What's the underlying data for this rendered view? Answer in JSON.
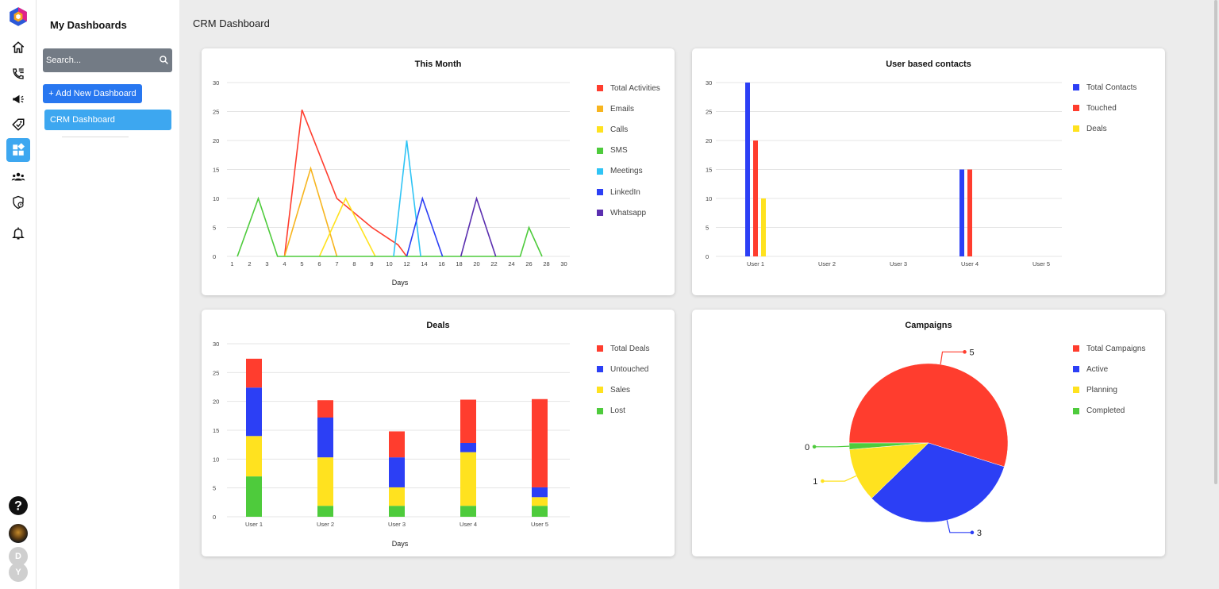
{
  "sidebar": {
    "title": "My Dashboards",
    "search_placeholder": "Search...",
    "add_label": "+ Add New Dashboard",
    "items": [
      {
        "label": "CRM Dashboard"
      }
    ]
  },
  "rail": {
    "icons": [
      "logo-icon",
      "home-icon",
      "phone-list-icon",
      "megaphone-icon",
      "tag-icon",
      "dashboard-icon",
      "team-icon",
      "shield-clock-icon",
      "bell-icon"
    ],
    "bottom": {
      "help": "?",
      "user_initials": [
        "D",
        "Y"
      ]
    }
  },
  "page": {
    "title": "CRM Dashboard"
  },
  "colors": {
    "red": "#ff3d2e",
    "orange": "#f7b51f",
    "yellow": "#ffe21f",
    "green": "#4ecb3c",
    "sky": "#2fc4f5",
    "blue": "#2c3ff5",
    "purple": "#5b2fb0",
    "accent": "#3da7f0"
  },
  "charts": [
    {
      "type": "line",
      "title": "This Month",
      "xlabel": "Days",
      "yticks": [
        0,
        5,
        10,
        15,
        20,
        25,
        30
      ],
      "ylim": [
        0,
        30
      ],
      "xticks": [
        1,
        2,
        3,
        4,
        5,
        6,
        7,
        8,
        9,
        10,
        12,
        14,
        16,
        18,
        20,
        22,
        24,
        26,
        28,
        30
      ],
      "series": [
        {
          "name": "Total Activities",
          "color": "#ff3d2e",
          "points": [
            [
              4,
              0
            ],
            [
              5,
              25.3
            ],
            [
              7,
              10
            ],
            [
              9,
              5
            ],
            [
              11,
              2
            ],
            [
              12,
              0
            ]
          ]
        },
        {
          "name": "Emails",
          "color": "#f7b51f",
          "points": [
            [
              4,
              0
            ],
            [
              5.5,
              15.2
            ],
            [
              7,
              0
            ]
          ]
        },
        {
          "name": "Calls",
          "color": "#ffe21f",
          "points": [
            [
              6,
              0
            ],
            [
              7.5,
              10
            ],
            [
              9.2,
              0
            ]
          ]
        },
        {
          "name": "SMS",
          "color": "#4ecb3c",
          "points": [
            [
              1.3,
              0
            ],
            [
              2.5,
              10
            ],
            [
              3.6,
              0
            ],
            [
              25,
              0
            ],
            [
              26,
              5
            ],
            [
              27.5,
              0
            ]
          ]
        },
        {
          "name": "Meetings",
          "color": "#2fc4f5",
          "points": [
            [
              10.5,
              0
            ],
            [
              12,
              20
            ],
            [
              13.6,
              0
            ]
          ]
        },
        {
          "name": "LinkedIn",
          "color": "#2c3ff5",
          "points": [
            [
              12,
              0
            ],
            [
              13.8,
              10
            ],
            [
              16.1,
              0
            ]
          ]
        },
        {
          "name": "Whatsapp",
          "color": "#5b2fb0",
          "points": [
            [
              18.2,
              0
            ],
            [
              20,
              10
            ],
            [
              22.2,
              0
            ]
          ]
        }
      ]
    },
    {
      "type": "bar",
      "title": "User based contacts",
      "xlabel": "",
      "yticks": [
        0,
        5,
        10,
        15,
        20,
        25,
        30
      ],
      "ylim": [
        0,
        30
      ],
      "categories": [
        "User 1",
        "User 2",
        "User 3",
        "User 4",
        "User 5"
      ],
      "series": [
        {
          "name": "Total Contacts",
          "color": "#2c3ff5",
          "values": [
            30,
            0,
            0,
            15,
            0
          ]
        },
        {
          "name": "Touched",
          "color": "#ff3d2e",
          "values": [
            20,
            0,
            0,
            15,
            0
          ]
        },
        {
          "name": "Deals",
          "color": "#ffe21f",
          "values": [
            10,
            0,
            0,
            0,
            0
          ]
        }
      ]
    },
    {
      "type": "stacked-bar",
      "title": "Deals",
      "xlabel": "Days",
      "yticks": [
        0,
        5,
        10,
        15,
        20,
        25,
        30
      ],
      "ylim": [
        0,
        30
      ],
      "categories": [
        "User 1",
        "User 2",
        "User 3",
        "User 4",
        "User 5"
      ],
      "series": [
        {
          "name": "Total Deals",
          "color": "#ff3d2e",
          "values": [
            5,
            3,
            4.5,
            7.5,
            15.3
          ]
        },
        {
          "name": "Untouched",
          "color": "#2c3ff5",
          "values": [
            8.4,
            6.9,
            5.2,
            1.6,
            1.7
          ]
        },
        {
          "name": "Sales",
          "color": "#ffe21f",
          "values": [
            7,
            8.4,
            3.2,
            9.3,
            1.5
          ]
        },
        {
          "name": "Lost",
          "color": "#4ecb3c",
          "values": [
            7,
            1.9,
            1.9,
            1.9,
            1.9
          ]
        }
      ]
    },
    {
      "type": "pie",
      "title": "Campaigns",
      "series": [
        {
          "name": "Total Campaigns",
          "color": "#ff3d2e",
          "value": 5,
          "label": "5"
        },
        {
          "name": "Active",
          "color": "#2c3ff5",
          "value": 3,
          "label": "3"
        },
        {
          "name": "Planning",
          "color": "#ffe21f",
          "value": 1,
          "label": "1"
        },
        {
          "name": "Completed",
          "color": "#4ecb3c",
          "value": 0.12,
          "label": "0"
        }
      ]
    }
  ],
  "chart_data": [
    {
      "type": "line",
      "title": "This Month",
      "xlabel": "Days",
      "ylabel": "",
      "ylim": [
        0,
        30
      ],
      "x": [
        1,
        2,
        3,
        4,
        5,
        6,
        7,
        8,
        9,
        10,
        12,
        14,
        16,
        18,
        20,
        22,
        24,
        26,
        28,
        30
      ],
      "series": [
        {
          "name": "Total Activities",
          "peak": {
            "x": 5,
            "y": 25
          }
        },
        {
          "name": "Emails",
          "peak": {
            "x": 5,
            "y": 15
          }
        },
        {
          "name": "Calls",
          "peak": {
            "x": 7,
            "y": 10
          }
        },
        {
          "name": "SMS",
          "peaks": [
            {
              "x": 2,
              "y": 10
            },
            {
              "x": 26,
              "y": 5
            }
          ]
        },
        {
          "name": "Meetings",
          "peak": {
            "x": 12,
            "y": 20
          }
        },
        {
          "name": "LinkedIn",
          "peak": {
            "x": 14,
            "y": 10
          }
        },
        {
          "name": "Whatsapp",
          "peak": {
            "x": 20,
            "y": 10
          }
        }
      ]
    },
    {
      "type": "bar",
      "title": "User based contacts",
      "ylim": [
        0,
        30
      ],
      "categories": [
        "User 1",
        "User 2",
        "User 3",
        "User 4",
        "User 5"
      ],
      "series": [
        {
          "name": "Total Contacts",
          "values": [
            30,
            0,
            0,
            15,
            0
          ]
        },
        {
          "name": "Touched",
          "values": [
            20,
            0,
            0,
            15,
            0
          ]
        },
        {
          "name": "Deals",
          "values": [
            10,
            0,
            0,
            0,
            0
          ]
        }
      ]
    },
    {
      "type": "bar",
      "stacked": true,
      "title": "Deals",
      "xlabel": "Days",
      "ylim": [
        0,
        30
      ],
      "categories": [
        "User 1",
        "User 2",
        "User 3",
        "User 4",
        "User 5"
      ],
      "series": [
        {
          "name": "Lost",
          "values": [
            7,
            2,
            2,
            2,
            2
          ]
        },
        {
          "name": "Sales",
          "values": [
            7,
            8,
            3,
            9,
            1.5
          ]
        },
        {
          "name": "Untouched",
          "values": [
            8,
            7,
            5,
            2,
            2
          ]
        },
        {
          "name": "Total Deals",
          "values": [
            5,
            3,
            5,
            7,
            15
          ]
        }
      ]
    },
    {
      "type": "pie",
      "title": "Campaigns",
      "series": [
        {
          "name": "Total Campaigns",
          "value": 5
        },
        {
          "name": "Active",
          "value": 3
        },
        {
          "name": "Planning",
          "value": 1
        },
        {
          "name": "Completed",
          "value": 0
        }
      ]
    }
  ]
}
